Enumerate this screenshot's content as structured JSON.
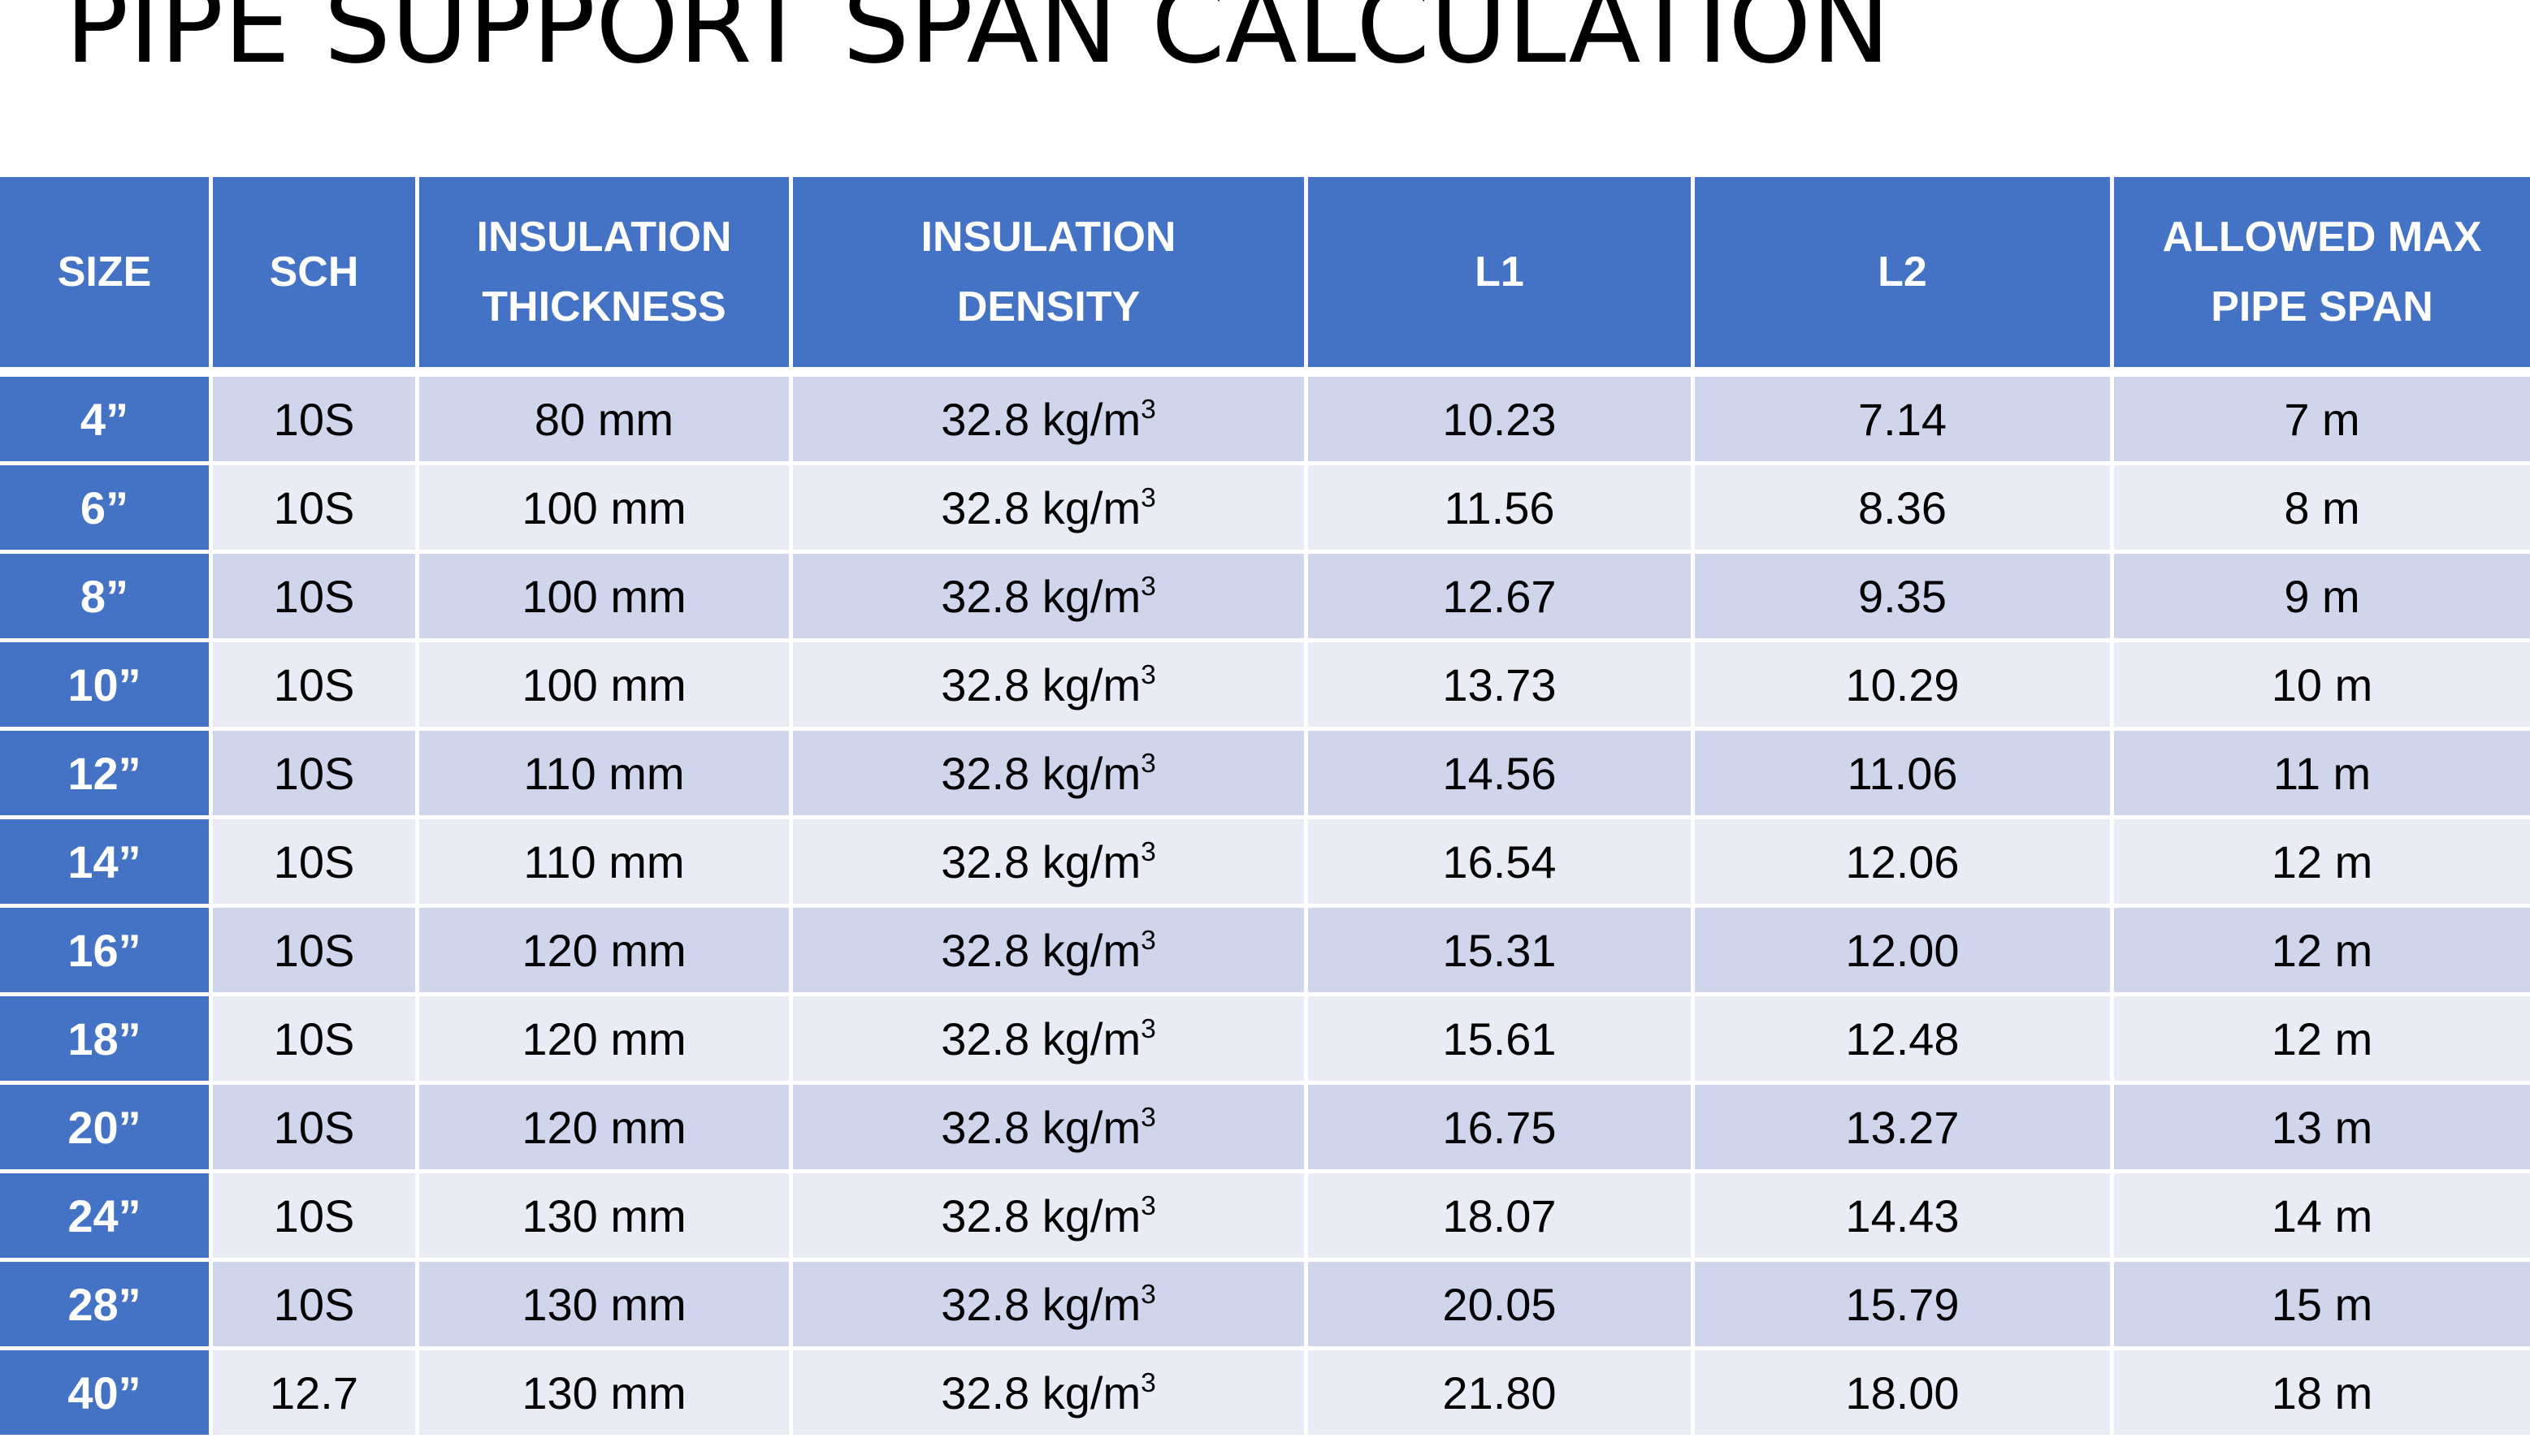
{
  "title": "PIPE SUPPORT SPAN CALCULATION",
  "table": {
    "headers": [
      [
        "SIZE"
      ],
      [
        "SCH"
      ],
      [
        "INSULATION",
        "THICKNESS"
      ],
      [
        "INSULATION",
        "DENSITY"
      ],
      [
        "L1"
      ],
      [
        "L2"
      ],
      [
        "ALLOWED MAX",
        "PIPE SPAN"
      ]
    ],
    "density_unit": "kg/m",
    "density_exponent": "3",
    "rows": [
      {
        "size": "4”",
        "sch": "10S",
        "thickness": "80 mm",
        "density": "32.8",
        "l1": "10.23",
        "l2": "7.14",
        "span": "7 m"
      },
      {
        "size": "6”",
        "sch": "10S",
        "thickness": "100 mm",
        "density": "32.8",
        "l1": "11.56",
        "l2": "8.36",
        "span": "8 m"
      },
      {
        "size": "8”",
        "sch": "10S",
        "thickness": "100 mm",
        "density": "32.8",
        "l1": "12.67",
        "l2": "9.35",
        "span": "9 m"
      },
      {
        "size": "10”",
        "sch": "10S",
        "thickness": "100 mm",
        "density": "32.8",
        "l1": "13.73",
        "l2": "10.29",
        "span": "10 m"
      },
      {
        "size": "12”",
        "sch": "10S",
        "thickness": "110 mm",
        "density": "32.8",
        "l1": "14.56",
        "l2": "11.06",
        "span": "11 m"
      },
      {
        "size": "14”",
        "sch": "10S",
        "thickness": "110 mm",
        "density": "32.8",
        "l1": "16.54",
        "l2": "12.06",
        "span": "12 m"
      },
      {
        "size": "16”",
        "sch": "10S",
        "thickness": "120 mm",
        "density": "32.8",
        "l1": "15.31",
        "l2": "12.00",
        "span": "12 m"
      },
      {
        "size": "18”",
        "sch": "10S",
        "thickness": "120 mm",
        "density": "32.8",
        "l1": "15.61",
        "l2": "12.48",
        "span": "12 m"
      },
      {
        "size": "20”",
        "sch": "10S",
        "thickness": "120 mm",
        "density": "32.8",
        "l1": "16.75",
        "l2": "13.27",
        "span": "13 m"
      },
      {
        "size": "24”",
        "sch": "10S",
        "thickness": "130 mm",
        "density": "32.8",
        "l1": "18.07",
        "l2": "14.43",
        "span": "14 m"
      },
      {
        "size": "28”",
        "sch": "10S",
        "thickness": "130 mm",
        "density": "32.8",
        "l1": "20.05",
        "l2": "15.79",
        "span": "15 m"
      },
      {
        "size": "40”",
        "sch": "12.7",
        "thickness": "130 mm",
        "density": "32.8",
        "l1": "21.80",
        "l2": "18.00",
        "span": "18 m"
      }
    ]
  },
  "colors": {
    "header_bg": "#4472C4",
    "row_dark": "#CFD5EA",
    "row_light": "#E9EBF5"
  }
}
